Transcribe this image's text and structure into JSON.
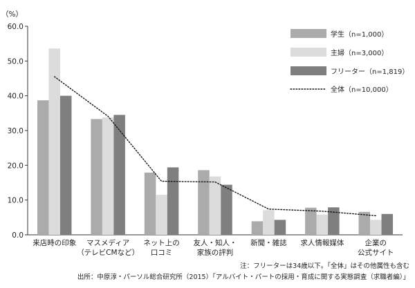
{
  "chart_data": {
    "type": "bar",
    "unit_label": "（%）",
    "categories": [
      [
        "来店時の印象"
      ],
      [
        "マスメディア",
        "（テレビCMなど）"
      ],
      [
        "ネット上の",
        "口コミ"
      ],
      [
        "友人・知人・",
        "家族の評判"
      ],
      [
        "新聞・雑誌"
      ],
      [
        "求人情報媒体"
      ],
      [
        "企業の",
        "公式サイト"
      ]
    ],
    "series": [
      {
        "name": "学生（n=1,000）",
        "values": [
          38.7,
          33.3,
          17.9,
          18.6,
          3.9,
          7.8,
          6.6
        ],
        "color": "#ababab"
      },
      {
        "name": "主婦（n=3,000）",
        "values": [
          53.6,
          33.8,
          11.5,
          16.8,
          7.1,
          5.8,
          4.3
        ],
        "color": "#dcdcdc"
      },
      {
        "name": "フリーター（n=1,819）",
        "values": [
          40.0,
          34.5,
          19.4,
          14.4,
          4.3,
          7.9,
          6.0
        ],
        "color": "#7f7f7f"
      }
    ],
    "line_series": {
      "name": "全体（n=10,000）",
      "values": [
        45.5,
        34.1,
        15.4,
        15.2,
        7.4,
        6.8,
        5.5
      ],
      "style": "dotted"
    },
    "ylim": [
      0,
      60
    ],
    "yticks": [
      0.0,
      10.0,
      20.0,
      30.0,
      40.0,
      50.0,
      60.0
    ],
    "ytick_labels": [
      "0.0",
      "10.0",
      "20.0",
      "30.0",
      "40.0",
      "50.0",
      "60.0"
    ],
    "legend_position": "top-right",
    "grid": false
  },
  "notes": [
    "注：フリーターは34歳以下。「全体」はその他属性も含む",
    "出所：中原淳・パーソル総合研究所（2015）「アルバイト・パートの採用・育成に関する実態調査（求職者編）」"
  ]
}
